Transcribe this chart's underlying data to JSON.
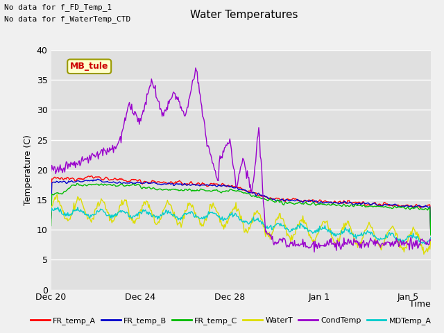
{
  "title": "Water Temperatures",
  "ylabel": "Temperature (C)",
  "xlabel": "Time",
  "annotation_lines": [
    "No data for f_FD_Temp_1",
    "No data for f_WaterTemp_CTD"
  ],
  "mb_tule_label": "MB_tule",
  "ylim": [
    0,
    40
  ],
  "yticks": [
    0,
    5,
    10,
    15,
    20,
    25,
    30,
    35,
    40
  ],
  "plot_bg": "#e0e0e0",
  "fig_bg": "#f0f0f0",
  "legend_entries": [
    {
      "label": "FR_temp_A",
      "color": "#ff0000"
    },
    {
      "label": "FR_temp_B",
      "color": "#0000cc"
    },
    {
      "label": "FR_temp_C",
      "color": "#00bb00"
    },
    {
      "label": "WaterT",
      "color": "#dddd00"
    },
    {
      "label": "CondTemp",
      "color": "#9900cc"
    },
    {
      "label": "MDTemp_A",
      "color": "#00cccc"
    }
  ],
  "xtick_labels": [
    "Dec 20",
    "Dec 24",
    "Dec 28",
    "Jan 1",
    "Jan 5"
  ],
  "xtick_positions": [
    0,
    4,
    8,
    12,
    16
  ]
}
